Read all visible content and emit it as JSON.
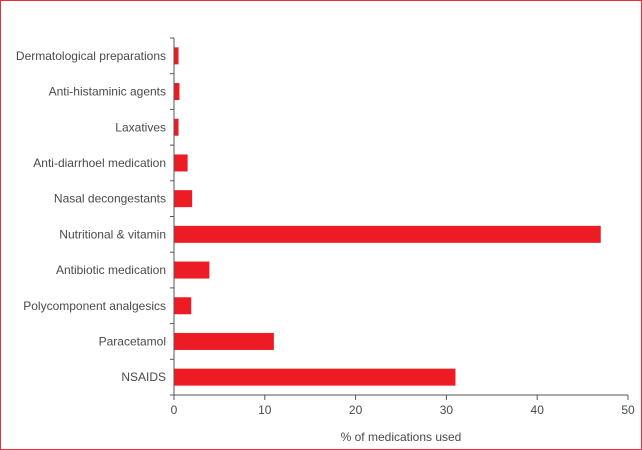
{
  "chart_data": {
    "type": "bar",
    "orientation": "horizontal",
    "title": "",
    "xlabel": "% of medications used",
    "ylabel": "",
    "xlim": [
      0,
      50
    ],
    "xticks": [
      0,
      10,
      20,
      30,
      40,
      50
    ],
    "grid": false,
    "categories": [
      "Dermatological preparations",
      "Anti-histaminic agents",
      "Laxatives",
      "Anti-diarrhoel medication",
      "Nasal decongestants",
      "Nutritional & vitamin",
      "Antibiotic medication",
      "Polycomponent analgesics",
      "Paracetamol",
      "NSAIDS"
    ],
    "values": [
      0.5,
      0.6,
      0.5,
      1.5,
      2.0,
      47.0,
      3.9,
      1.9,
      11.0,
      31.0
    ],
    "bar_color": "#ed1c24",
    "frame_color": "#e8303a"
  }
}
